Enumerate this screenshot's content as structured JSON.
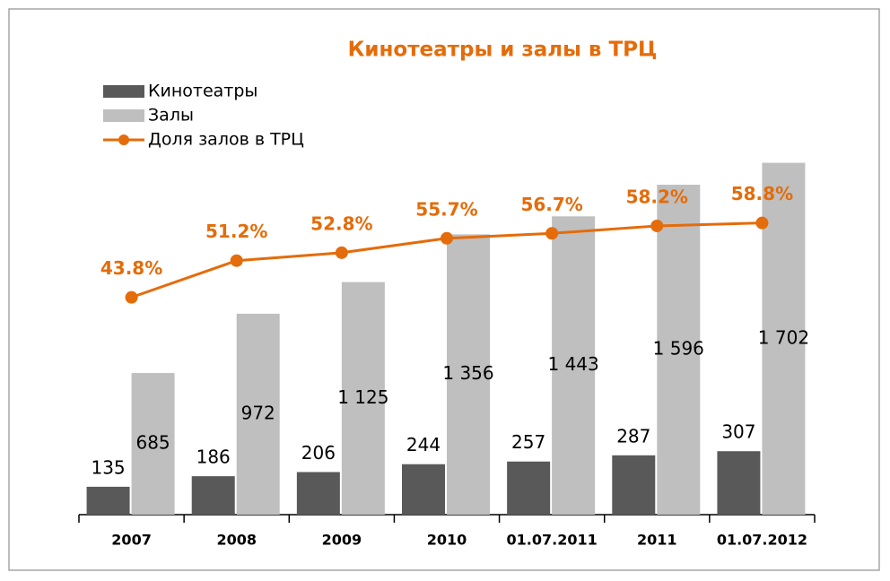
{
  "chart_data": {
    "type": "bar",
    "title": "Кинотеатры и залы в ТРЦ",
    "categories": [
      "2007",
      "2008",
      "2009",
      "2010",
      "01.07.2011",
      "2011",
      "01.07.2012"
    ],
    "series": [
      {
        "name": "Кинотеатры",
        "color": "#595959",
        "values": [
          135,
          186,
          206,
          244,
          257,
          287,
          307
        ]
      },
      {
        "name": "Залы",
        "color": "#bfbfbf",
        "values": [
          685,
          972,
          1125,
          1356,
          1443,
          1596,
          1702
        ],
        "value_labels": [
          "685",
          "972",
          "1 125",
          "1 356",
          "1 443",
          "1 596",
          "1 702"
        ]
      },
      {
        "name": "Доля залов в ТРЦ",
        "type": "line",
        "axis": "y2",
        "color": "#e46c0a",
        "values": [
          43.8,
          51.2,
          52.8,
          55.7,
          56.7,
          58.2,
          58.8
        ],
        "value_labels": [
          "43.8%",
          "51.2%",
          "52.8%",
          "55.7%",
          "56.7%",
          "58.2%",
          "58.8%"
        ]
      }
    ],
    "ylim": [
      0,
      1800
    ],
    "y2lim": [
      0,
      75
    ],
    "legend": "top-left"
  }
}
